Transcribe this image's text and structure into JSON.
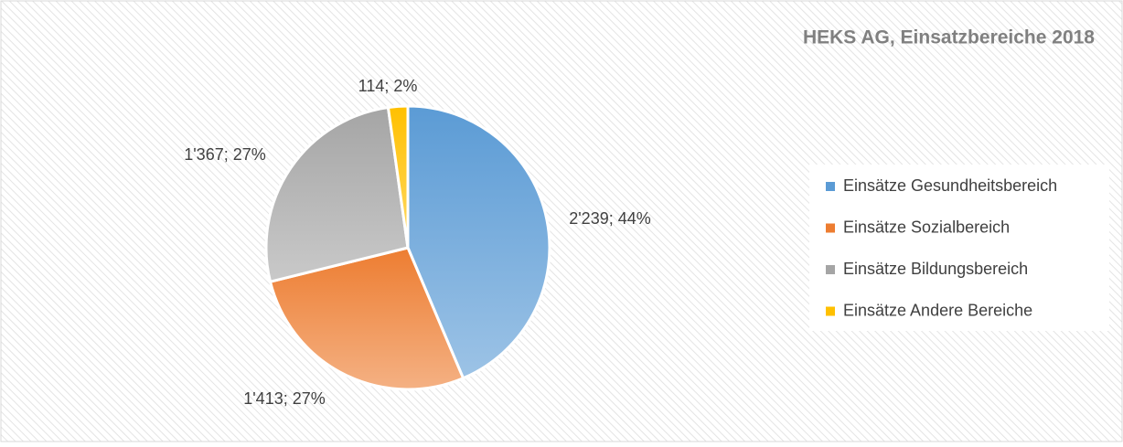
{
  "chart_data": {
    "type": "pie",
    "title": "HEKS AG, Einsatzbereiche 2018",
    "categories": [
      "Einsätze Gesundheitsbereich",
      "Einsätze Sozialbereich",
      "Einsätze Bildungsbereich",
      "Einsätze Andere Bereiche"
    ],
    "values": [
      2239,
      1413,
      1367,
      114
    ],
    "value_labels": [
      "2'239; 44%",
      "1'413; 27%",
      "1'367; 27%",
      "114; 2%"
    ],
    "colors": [
      "#5b9bd5",
      "#ed7d31",
      "#a5a5a5",
      "#ffc000"
    ],
    "legend": "right"
  }
}
